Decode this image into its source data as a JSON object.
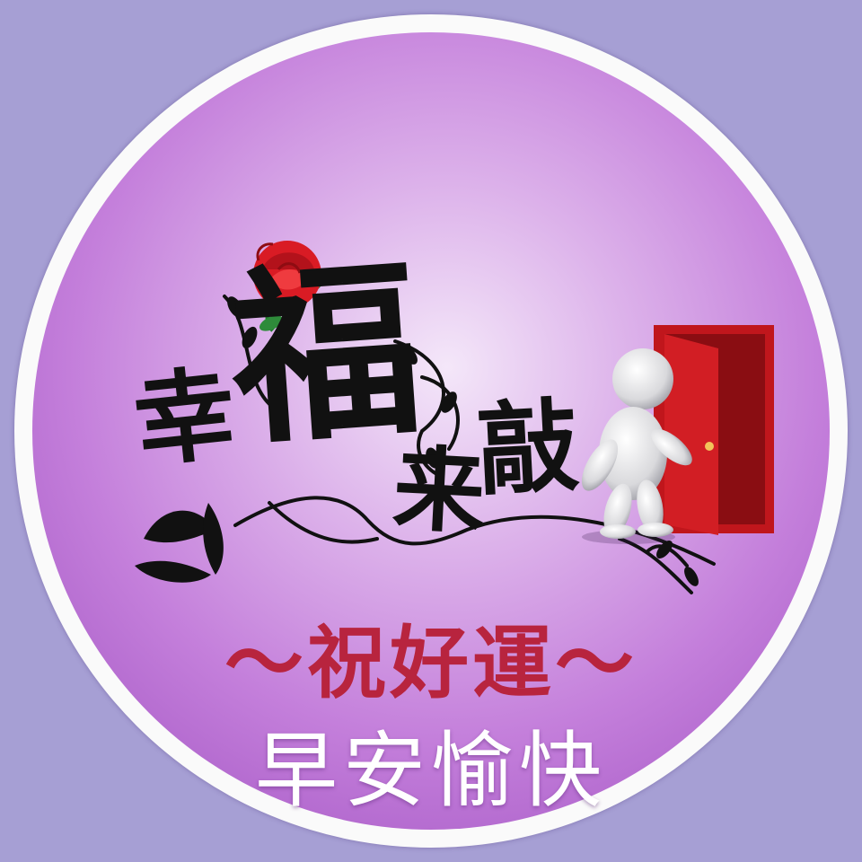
{
  "title": {
    "char1": "幸",
    "char2": "福",
    "char3": "来",
    "char4": "敲"
  },
  "wish_text": "～祝好運～",
  "greeting_text": "早安愉快",
  "icons": [
    "rose-icon",
    "vine-ornament",
    "figure-icon",
    "door-icon"
  ],
  "colors": {
    "background": "#a69fd4",
    "ring": "#fafafa",
    "disc": "#c47fdb",
    "calligraphy": "#111111",
    "wish": "#b8243e",
    "greeting": "#ffffff",
    "door": "#c0161c",
    "rose": "#d91b24"
  }
}
